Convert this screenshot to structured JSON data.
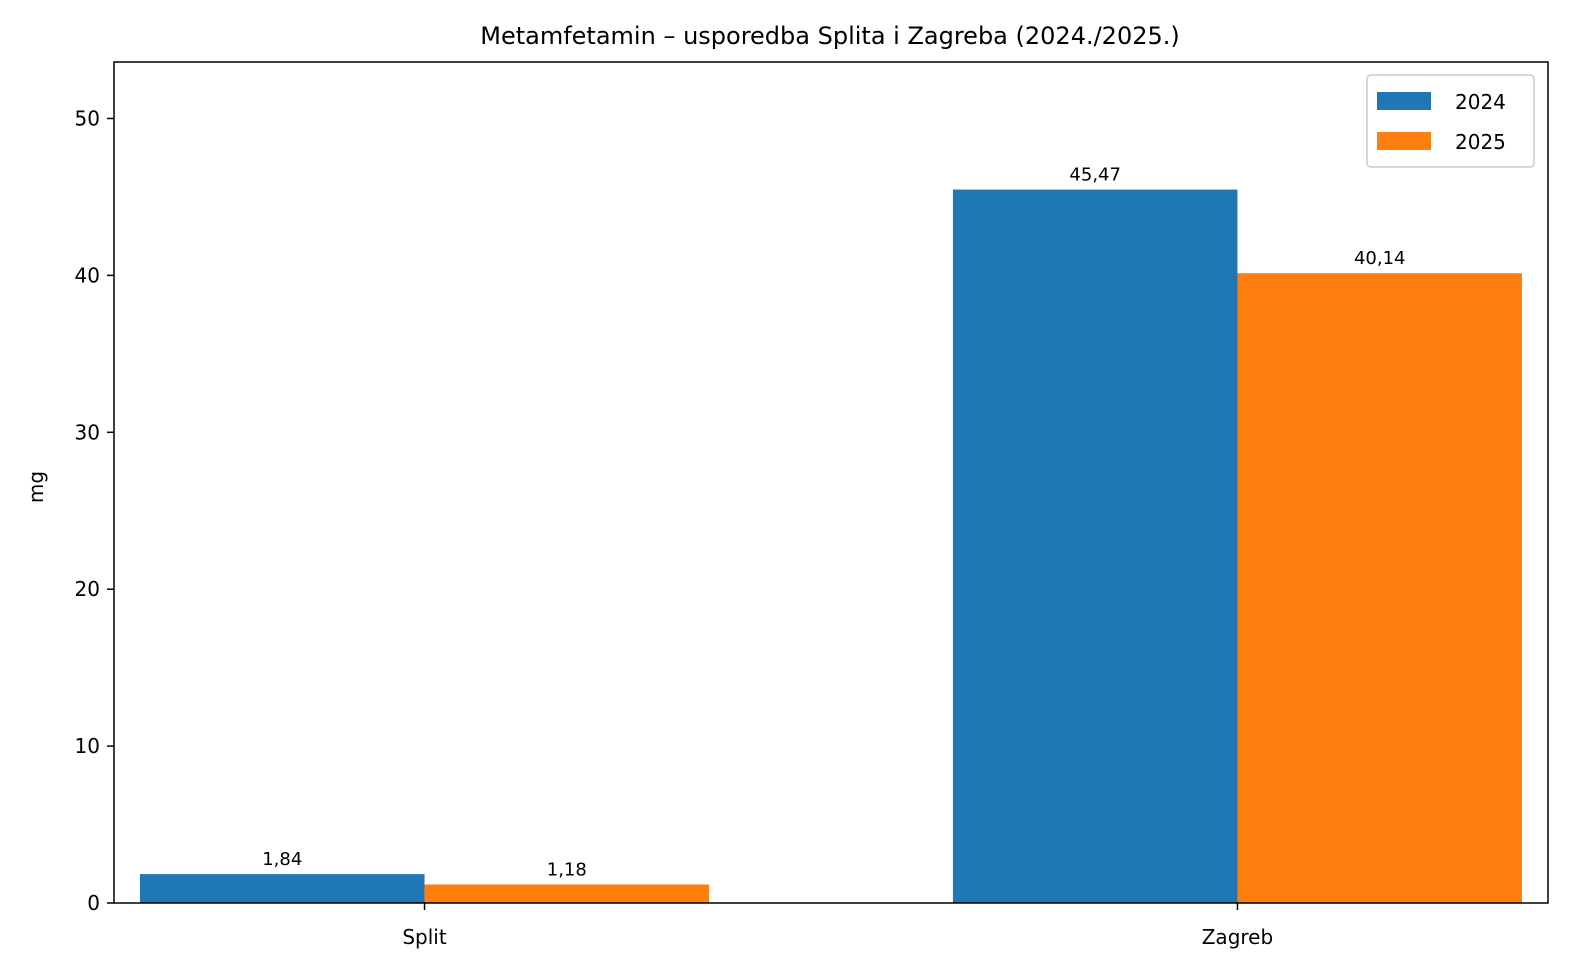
{
  "chart_data": {
    "type": "bar",
    "title": "Metamfetamin – usporedba Splita i Zagreba (2024./2025.)",
    "xlabel": "",
    "ylabel": "mg",
    "categories": [
      "Split",
      "Zagreb"
    ],
    "series": [
      {
        "name": "2024",
        "color": "#1f77b4",
        "values": [
          1.84,
          45.47
        ],
        "labels": [
          "1,84",
          "45,47"
        ]
      },
      {
        "name": "2025",
        "color": "#ff7f0e",
        "values": [
          1.18,
          40.14
        ],
        "labels": [
          "1,18",
          "40,14"
        ]
      }
    ],
    "ylim": [
      0,
      53.6
    ],
    "yticks": [
      0,
      10,
      20,
      30,
      40,
      50
    ],
    "grid": false,
    "legend_position": "top-right"
  }
}
